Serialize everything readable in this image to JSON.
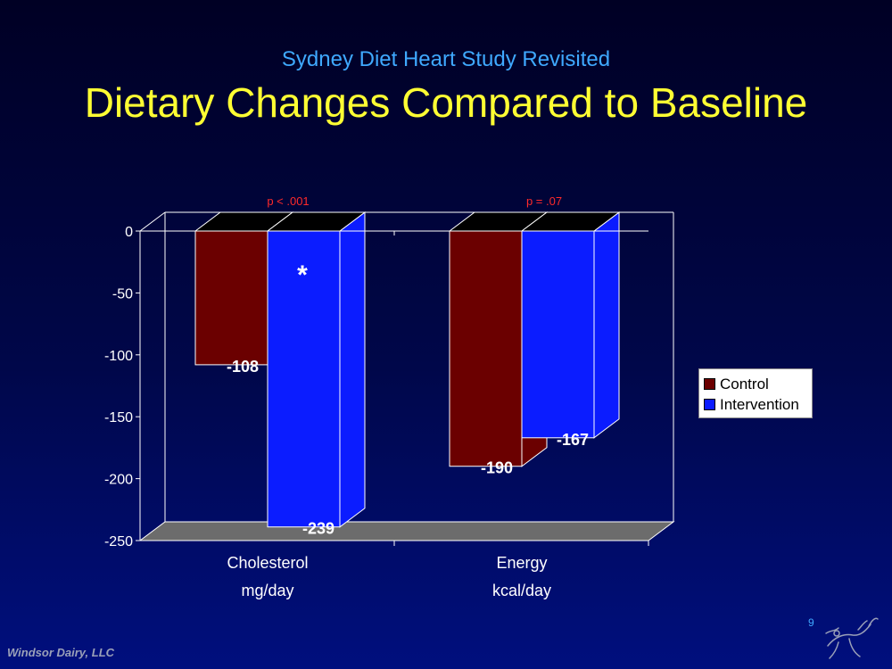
{
  "slide": {
    "subtitle": "Sydney Diet Heart Study Revisited",
    "title": "Dietary Changes Compared to Baseline",
    "footer": "Windsor Dairy, LLC",
    "page_number": "9"
  },
  "colors": {
    "control": "#6b0000",
    "intervention": "#0b1cff"
  },
  "chart_data": {
    "type": "bar",
    "categories": [
      "Cholesterol",
      "Energy"
    ],
    "category_units": [
      "mg/day",
      "kcal/day"
    ],
    "series": [
      {
        "name": "Control",
        "values": [
          -108,
          -190
        ]
      },
      {
        "name": "Intervention",
        "values": [
          -239,
          -167
        ]
      }
    ],
    "data_labels": [
      [
        "-108",
        "-190"
      ],
      [
        "-239",
        "-167"
      ]
    ],
    "ylim": [
      -250,
      0
    ],
    "yticks": [
      "0",
      "-50",
      "-100",
      "-150",
      "-200",
      "-250"
    ],
    "p_values": [
      "p < .001",
      "p = .07"
    ],
    "significance_marker": "*",
    "legend_position": "right",
    "grid": false,
    "three_d": true
  }
}
